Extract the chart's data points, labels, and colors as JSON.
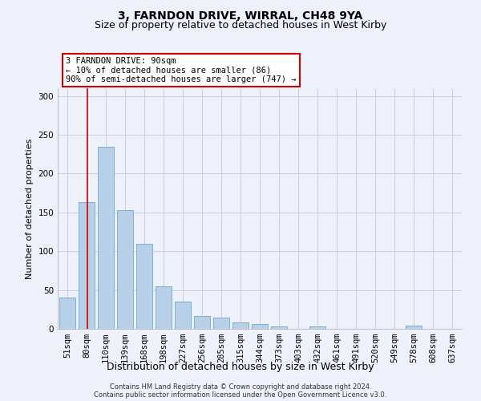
{
  "title": "3, FARNDON DRIVE, WIRRAL, CH48 9YA",
  "subtitle": "Size of property relative to detached houses in West Kirby",
  "xlabel": "Distribution of detached houses by size in West Kirby",
  "ylabel": "Number of detached properties",
  "bar_values": [
    40,
    163,
    235,
    153,
    110,
    55,
    35,
    17,
    14,
    8,
    6,
    3,
    0,
    3,
    0,
    0,
    0,
    0,
    4,
    0,
    0
  ],
  "bar_labels": [
    "51sqm",
    "80sqm",
    "110sqm",
    "139sqm",
    "168sqm",
    "198sqm",
    "227sqm",
    "256sqm",
    "285sqm",
    "315sqm",
    "344sqm",
    "373sqm",
    "403sqm",
    "432sqm",
    "461sqm",
    "491sqm",
    "520sqm",
    "549sqm",
    "578sqm",
    "608sqm",
    "637sqm"
  ],
  "bar_color": "#b8cfe8",
  "bar_edge_color": "#7aafd4",
  "background_color": "#eef1f9",
  "grid_color": "#c8cfe0",
  "redline_x": 1.05,
  "annotation_text": "3 FARNDON DRIVE: 90sqm\n← 10% of detached houses are smaller (86)\n90% of semi-detached houses are larger (747) →",
  "annotation_box_color": "#ffffff",
  "annotation_border_color": "#cc0000",
  "ylim": [
    0,
    310
  ],
  "yticks": [
    0,
    50,
    100,
    150,
    200,
    250,
    300
  ],
  "footer": "Contains HM Land Registry data © Crown copyright and database right 2024.\nContains public sector information licensed under the Open Government Licence v3.0.",
  "title_fontsize": 10,
  "subtitle_fontsize": 9,
  "xlabel_fontsize": 9,
  "ylabel_fontsize": 8,
  "tick_fontsize": 7.5,
  "annot_fontsize": 7.5,
  "footer_fontsize": 6
}
